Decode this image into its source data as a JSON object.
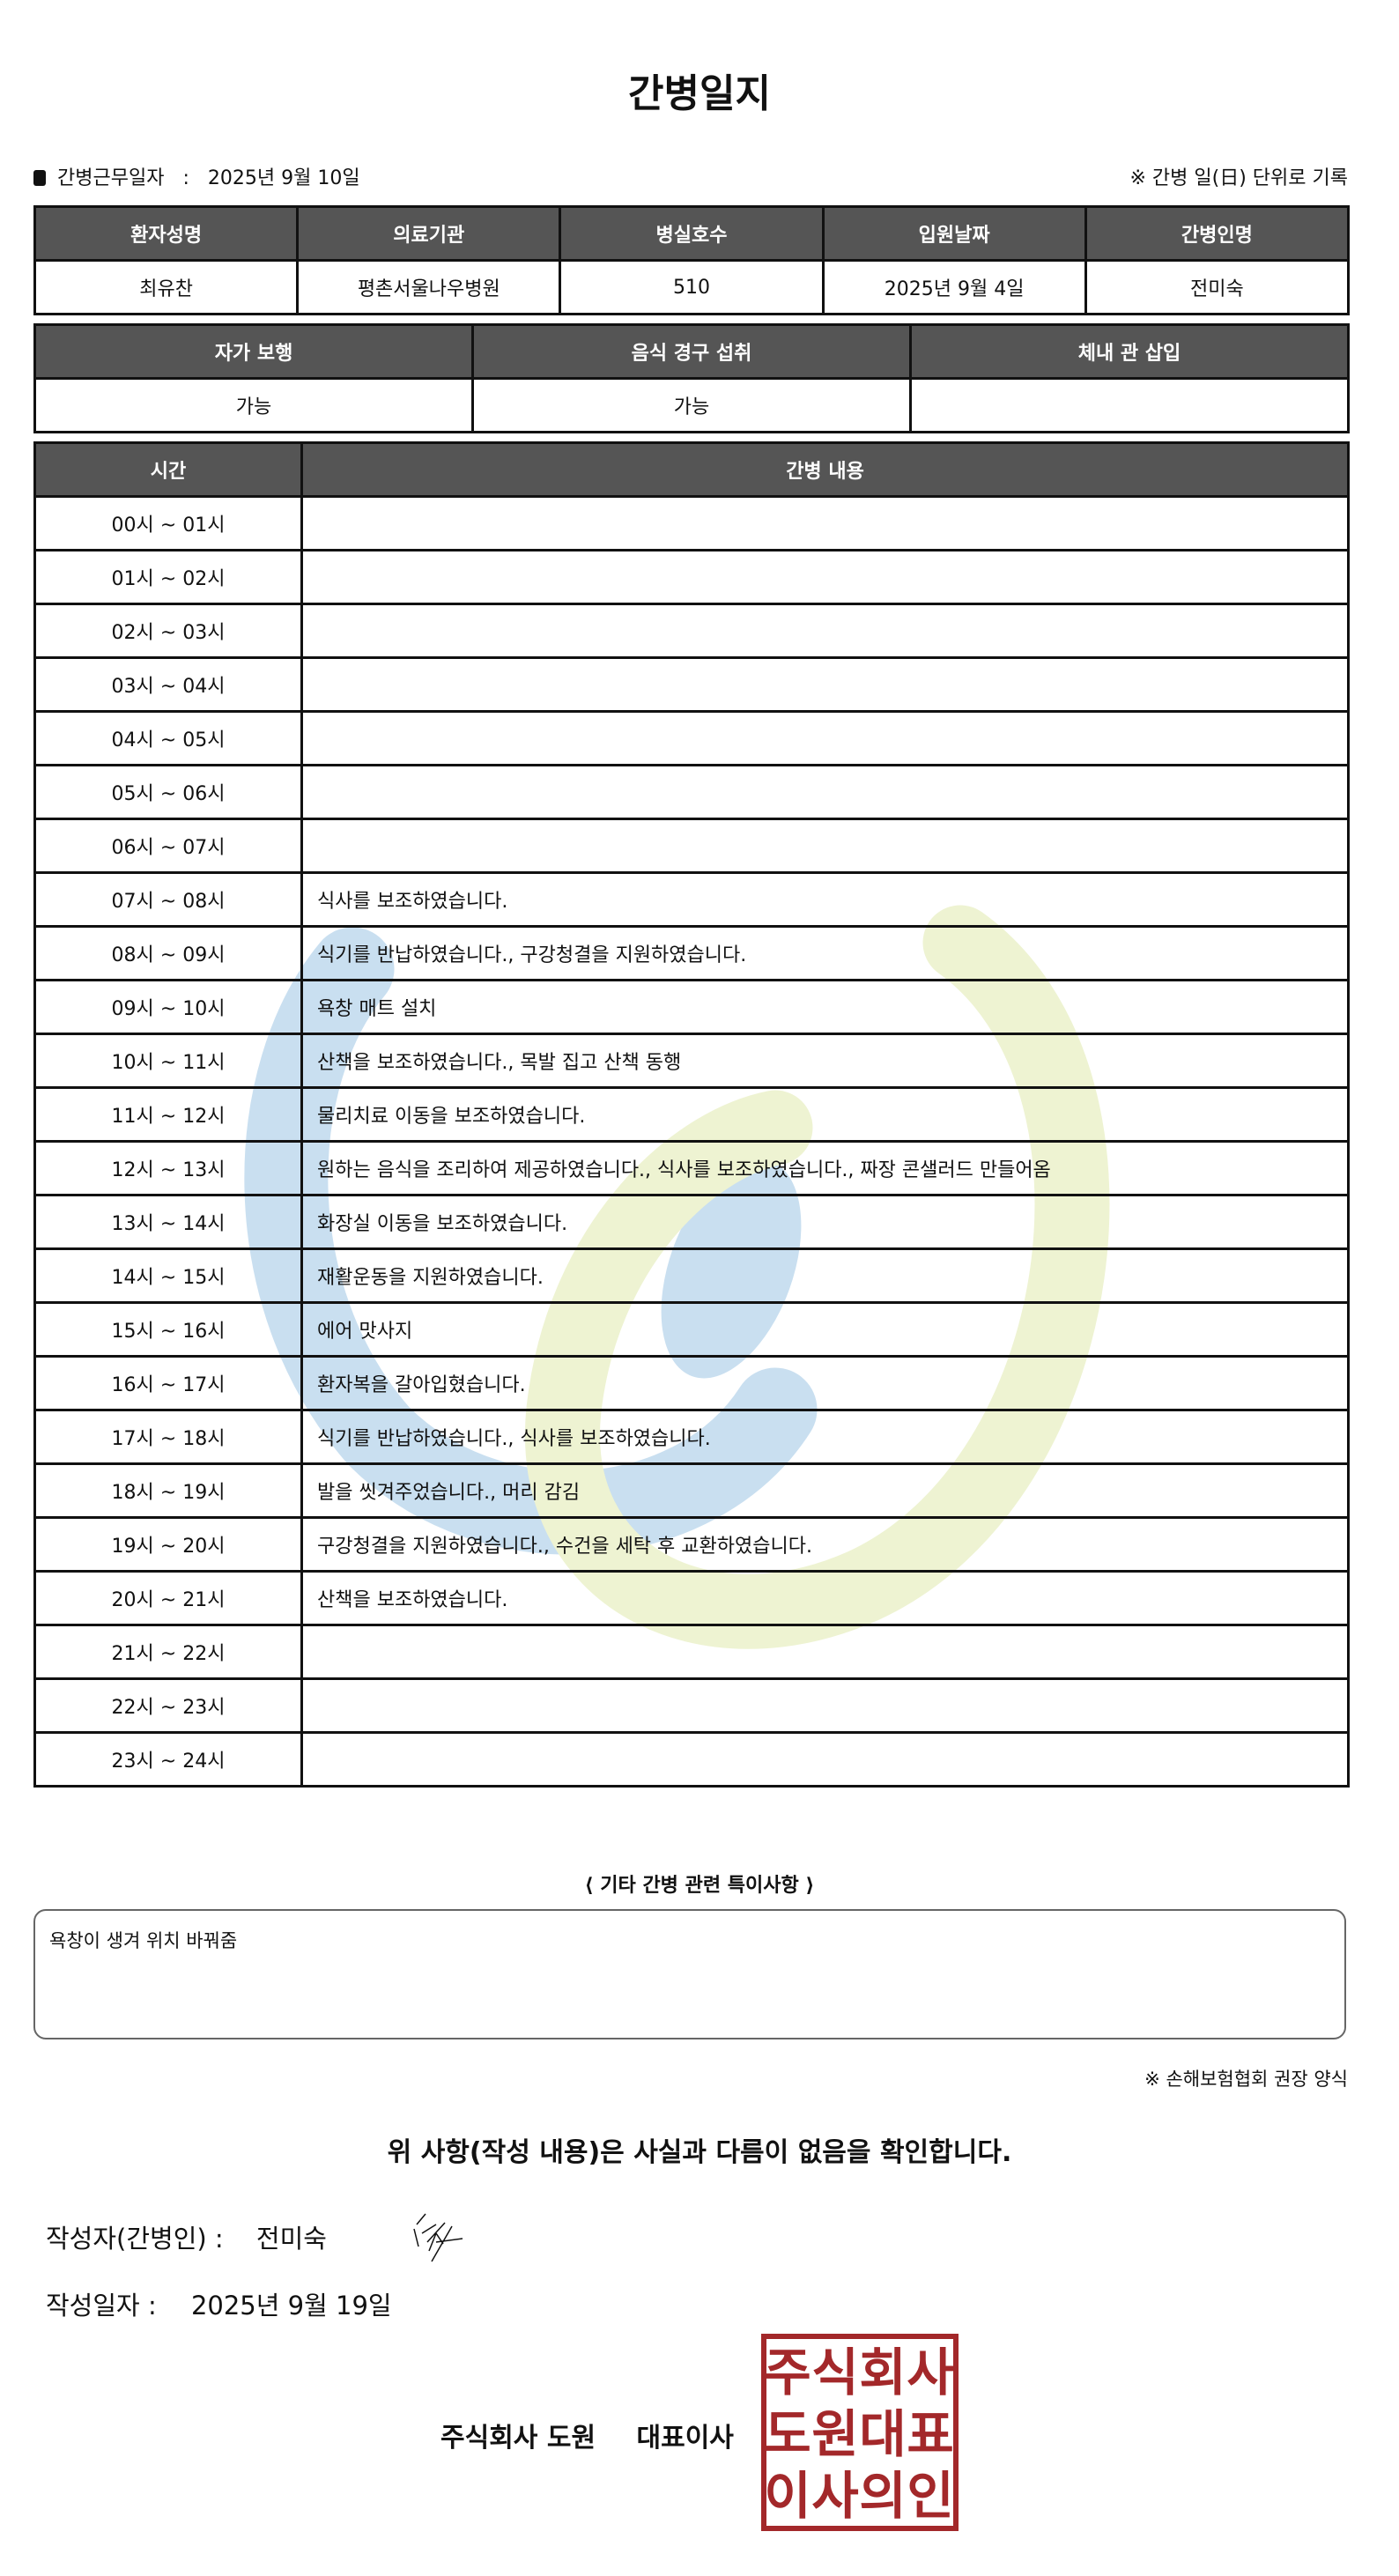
{
  "title": "간병일지",
  "info": {
    "work_date_label": "간병근무일자",
    "work_date_sep": ":",
    "work_date": "2025년 9월 10일",
    "note": "※ 간병 일(日) 단위로 기록"
  },
  "patient_table": {
    "headers": [
      "환자성명",
      "의료기관",
      "병실호수",
      "입원날짜",
      "간병인명"
    ],
    "values": [
      "최유찬",
      "평촌서울나우병원",
      "510",
      "2025년 9월 4일",
      "전미숙"
    ]
  },
  "status_table": {
    "headers": [
      "자가 보행",
      "음식 경구 섭취",
      "체내 관 삽입"
    ],
    "values": [
      "가능",
      "가능",
      ""
    ]
  },
  "log_table": {
    "headers": [
      "시간",
      "간병 내용"
    ],
    "rows": [
      {
        "time": "00시 ~ 01시",
        "content": ""
      },
      {
        "time": "01시 ~ 02시",
        "content": ""
      },
      {
        "time": "02시 ~ 03시",
        "content": ""
      },
      {
        "time": "03시 ~ 04시",
        "content": ""
      },
      {
        "time": "04시 ~ 05시",
        "content": ""
      },
      {
        "time": "05시 ~ 06시",
        "content": ""
      },
      {
        "time": "06시 ~ 07시",
        "content": ""
      },
      {
        "time": "07시 ~ 08시",
        "content": "식사를 보조하였습니다."
      },
      {
        "time": "08시 ~ 09시",
        "content": "식기를 반납하였습니다., 구강청결을 지원하였습니다."
      },
      {
        "time": "09시 ~ 10시",
        "content": "욕창 매트 설치"
      },
      {
        "time": "10시 ~ 11시",
        "content": "산책을 보조하였습니다., 목발 집고 산책 동행"
      },
      {
        "time": "11시 ~ 12시",
        "content": "물리치료 이동을 보조하였습니다."
      },
      {
        "time": "12시 ~ 13시",
        "content": "원하는 음식을 조리하여 제공하였습니다., 식사를 보조하였습니다., 짜장 콘샐러드 만들어옴"
      },
      {
        "time": "13시 ~ 14시",
        "content": "화장실 이동을 보조하였습니다."
      },
      {
        "time": "14시 ~ 15시",
        "content": "재활운동을 지원하였습니다."
      },
      {
        "time": "15시 ~ 16시",
        "content": "에어 맛사지"
      },
      {
        "time": "16시 ~ 17시",
        "content": "환자복을 갈아입혔습니다."
      },
      {
        "time": "17시 ~ 18시",
        "content": "식기를 반납하였습니다., 식사를 보조하였습니다."
      },
      {
        "time": "18시 ~ 19시",
        "content": "발을 씻겨주었습니다., 머리 감김"
      },
      {
        "time": "19시 ~ 20시",
        "content": "구강청결을 지원하였습니다., 수건을 세탁 후 교환하였습니다."
      },
      {
        "time": "20시 ~ 21시",
        "content": "산책을 보조하였습니다."
      },
      {
        "time": "21시 ~ 22시",
        "content": ""
      },
      {
        "time": "22시 ~ 23시",
        "content": ""
      },
      {
        "time": "23시 ~ 24시",
        "content": ""
      }
    ]
  },
  "notes": {
    "title": "⟨ 기타 간병 관련 특이사항 ⟩",
    "text": "욕창이 생겨 위치 바꿔줌"
  },
  "recommendation": "※ 손해보험협회 권장 양식",
  "confirmation": "위 사항(작성 내용)은 사실과 다름이 없음을 확인합니다.",
  "author": {
    "label": "작성자(간병인) :",
    "name": "전미숙"
  },
  "written_date": {
    "label": "작성일자 :",
    "value": "2025년 9월 19일"
  },
  "company": {
    "name": "주식회사 도원",
    "title": "대표이사"
  },
  "stamp": {
    "lines": [
      "주식회사",
      "도원대표",
      "이사의인"
    ],
    "color": "#a3282a"
  },
  "colors": {
    "header_bg": "#555555",
    "watermark_blue": "#c9dff0",
    "watermark_green": "#eef3d2"
  }
}
